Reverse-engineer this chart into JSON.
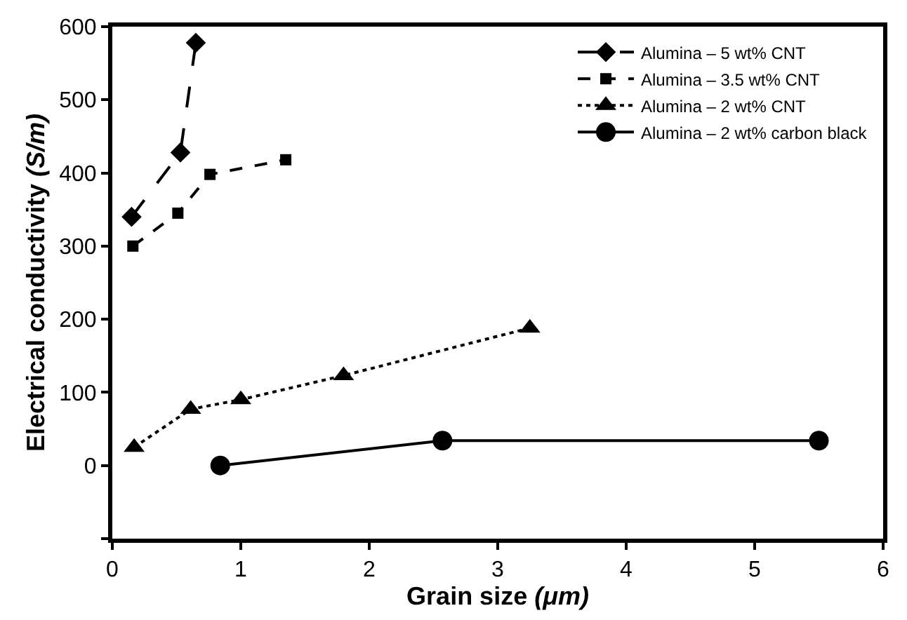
{
  "chart_data": {
    "type": "line",
    "xlabel": "Grain size (μm)",
    "ylabel": "Electrical conductivity (S/m)",
    "xlim": [
      0,
      6
    ],
    "xticks": [
      0,
      1,
      2,
      3,
      4,
      5,
      6
    ],
    "ylim": [
      -100,
      600
    ],
    "yticks": [
      {
        "value": -100,
        "label": null
      },
      0,
      100,
      200,
      300,
      400,
      500,
      600
    ],
    "legend": "top right",
    "series": [
      {
        "name": "Alumina – 5 wt% CNT",
        "color": "#000000",
        "marker": "diamond",
        "line_style": "dashed",
        "x": [
          0.15,
          0.53,
          0.65
        ],
        "values": [
          340,
          428,
          578
        ]
      },
      {
        "name": "Alumina – 3.5 wt% CNT",
        "color": "#000000",
        "marker": "square",
        "line_style": "dashed",
        "x": [
          0.16,
          0.51,
          0.76,
          1.35
        ],
        "values": [
          300,
          345,
          398,
          418
        ]
      },
      {
        "name": "Alumina – 2 wt% CNT",
        "color": "#000000",
        "marker": "triangle",
        "line_style": "dotted",
        "x": [
          0.17,
          0.61,
          1.0,
          1.8,
          3.25
        ],
        "values": [
          25,
          77,
          90,
          123,
          188
        ]
      },
      {
        "name": "Alumina – 2 wt% carbon black",
        "color": "#000000",
        "marker": "circle",
        "line_style": "solid",
        "x": [
          0.84,
          2.57,
          5.5
        ],
        "values": [
          0,
          34,
          34
        ]
      }
    ]
  }
}
